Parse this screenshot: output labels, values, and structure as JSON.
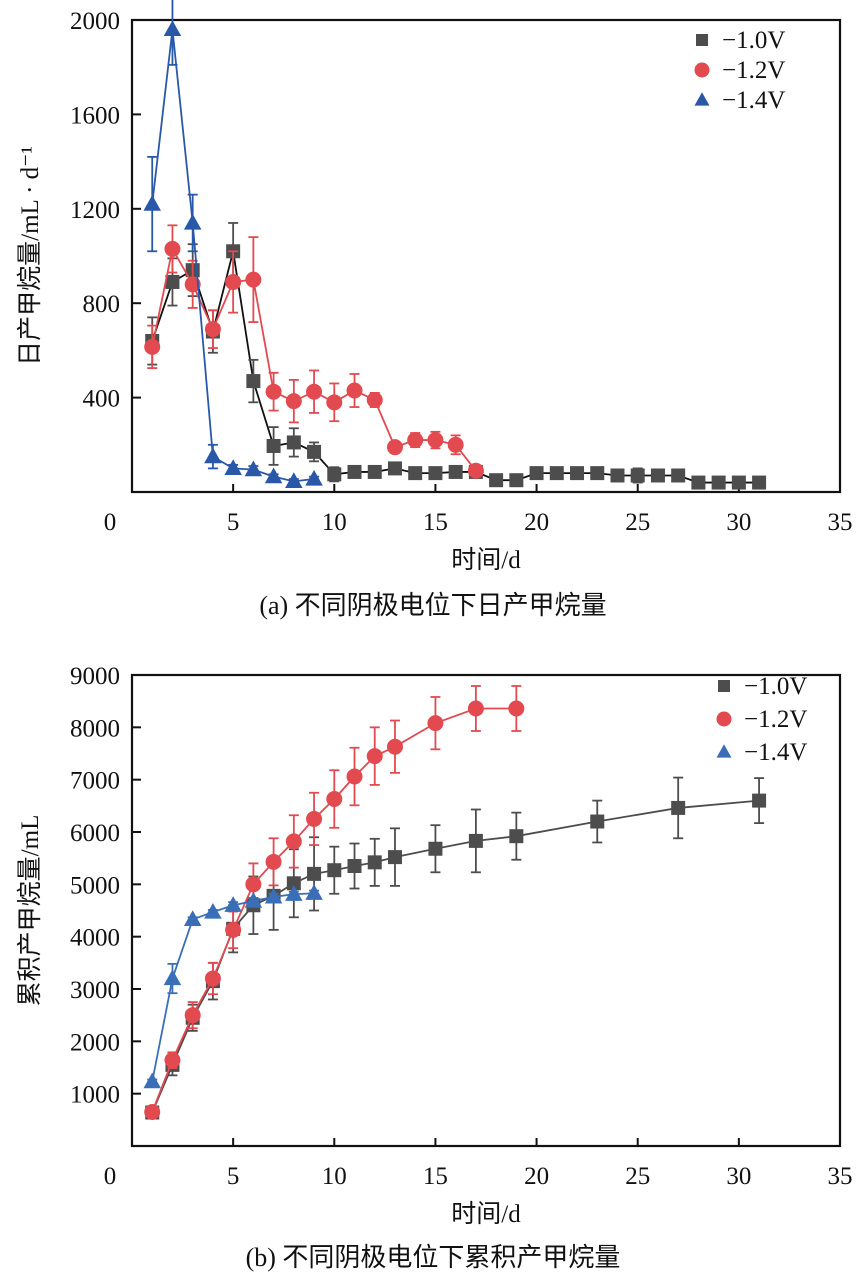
{
  "chart_data": [
    {
      "id": "a",
      "type": "line",
      "caption": "(a) 不同阴极电位下日产甲烷量",
      "xlabel": "时间/d",
      "ylabel": "日产甲烷量/mL · d⁻¹",
      "xlim": [
        0,
        35
      ],
      "ylim": [
        0,
        2000
      ],
      "xticks": [
        0,
        5,
        10,
        15,
        20,
        25,
        30,
        35
      ],
      "yticks": [
        400,
        800,
        1200,
        1600,
        2000
      ],
      "grid": false,
      "legend_position": "top-right",
      "series": [
        {
          "name": "−1.0V",
          "marker": "square",
          "color": "#4d4d4d",
          "line_color": "#111111",
          "x": [
            1,
            2,
            3,
            4,
            5,
            6,
            7,
            8,
            9,
            10,
            11,
            12,
            13,
            14,
            15,
            16,
            17,
            18,
            19,
            20,
            21,
            22,
            23,
            24,
            25,
            26,
            27,
            28,
            29,
            30,
            31
          ],
          "y": [
            640,
            890,
            940,
            680,
            1020,
            470,
            195,
            210,
            170,
            75,
            85,
            85,
            100,
            80,
            80,
            85,
            85,
            50,
            50,
            80,
            80,
            80,
            80,
            70,
            70,
            70,
            70,
            40,
            40,
            40,
            40
          ],
          "err": [
            100,
            100,
            110,
            90,
            120,
            90,
            80,
            60,
            40,
            30,
            15,
            15,
            15,
            15,
            15,
            15,
            15,
            10,
            10,
            15,
            15,
            20,
            15,
            20,
            30,
            15,
            15,
            10,
            10,
            20,
            10
          ]
        },
        {
          "name": "−1.2V",
          "marker": "circle",
          "color": "#e24a50",
          "line_color": "#e24a50",
          "x": [
            1,
            2,
            3,
            4,
            5,
            6,
            7,
            8,
            9,
            10,
            11,
            12,
            13,
            14,
            15,
            16,
            17
          ],
          "y": [
            615,
            1030,
            880,
            690,
            890,
            900,
            425,
            385,
            425,
            380,
            430,
            390,
            190,
            220,
            220,
            200,
            90
          ],
          "err": [
            90,
            100,
            100,
            80,
            130,
            180,
            80,
            90,
            90,
            80,
            70,
            30,
            20,
            30,
            35,
            40,
            15
          ]
        },
        {
          "name": "−1.4V",
          "marker": "triangle",
          "color": "#2a58a8",
          "line_color": "#2a58a8",
          "x": [
            1,
            2,
            3,
            4,
            5,
            6,
            7,
            8,
            9
          ],
          "y": [
            1220,
            1960,
            1140,
            150,
            100,
            95,
            65,
            45,
            55
          ],
          "err": [
            200,
            150,
            120,
            50,
            15,
            15,
            10,
            10,
            10
          ]
        }
      ]
    },
    {
      "id": "b",
      "type": "line",
      "caption": "(b) 不同阴极电位下累积产甲烷量",
      "xlabel": "时间/d",
      "ylabel": "累积产甲烷量/mL",
      "xlim": [
        0,
        35
      ],
      "ylim": [
        0,
        9000
      ],
      "xticks": [
        0,
        5,
        10,
        15,
        20,
        25,
        30,
        35
      ],
      "yticks": [
        1000,
        2000,
        3000,
        4000,
        5000,
        6000,
        7000,
        8000,
        9000
      ],
      "grid": false,
      "legend_position": "top-right",
      "series": [
        {
          "name": "−1.0V",
          "marker": "square",
          "color": "#4d4d4d",
          "line_color": "#4d4d4d",
          "x": [
            1,
            2,
            3,
            4,
            5,
            6,
            7,
            8,
            9,
            10,
            11,
            12,
            13,
            15,
            17,
            19,
            23,
            27,
            31
          ],
          "y": [
            640,
            1550,
            2450,
            3150,
            4150,
            4600,
            4780,
            5020,
            5200,
            5270,
            5350,
            5420,
            5520,
            5680,
            5830,
            5920,
            6200,
            6460,
            6600
          ],
          "err": [
            60,
            200,
            250,
            350,
            450,
            550,
            650,
            650,
            700,
            450,
            430,
            450,
            550,
            450,
            600,
            450,
            400,
            580,
            430
          ]
        },
        {
          "name": "−1.2V",
          "marker": "circle",
          "color": "#e24a50",
          "line_color": "#e24a50",
          "x": [
            1,
            2,
            3,
            4,
            5,
            6,
            7,
            8,
            9,
            10,
            11,
            12,
            13,
            15,
            17,
            19
          ],
          "y": [
            650,
            1640,
            2500,
            3200,
            4130,
            5000,
            5430,
            5820,
            6250,
            6630,
            7060,
            7450,
            7630,
            8080,
            8360,
            8360
          ],
          "err": [
            40,
            150,
            250,
            300,
            350,
            400,
            450,
            500,
            500,
            550,
            550,
            550,
            500,
            500,
            430,
            430
          ]
        },
        {
          "name": "−1.4V",
          "marker": "triangle",
          "color": "#3a6fb8",
          "line_color": "#3a6fb8",
          "x": [
            1,
            2,
            3,
            4,
            5,
            6,
            7,
            8,
            9
          ],
          "y": [
            1230,
            3200,
            4330,
            4470,
            4600,
            4680,
            4760,
            4810,
            4830
          ],
          "err": [
            40,
            280,
            40,
            40,
            60,
            60,
            60,
            50,
            50
          ]
        }
      ]
    }
  ]
}
